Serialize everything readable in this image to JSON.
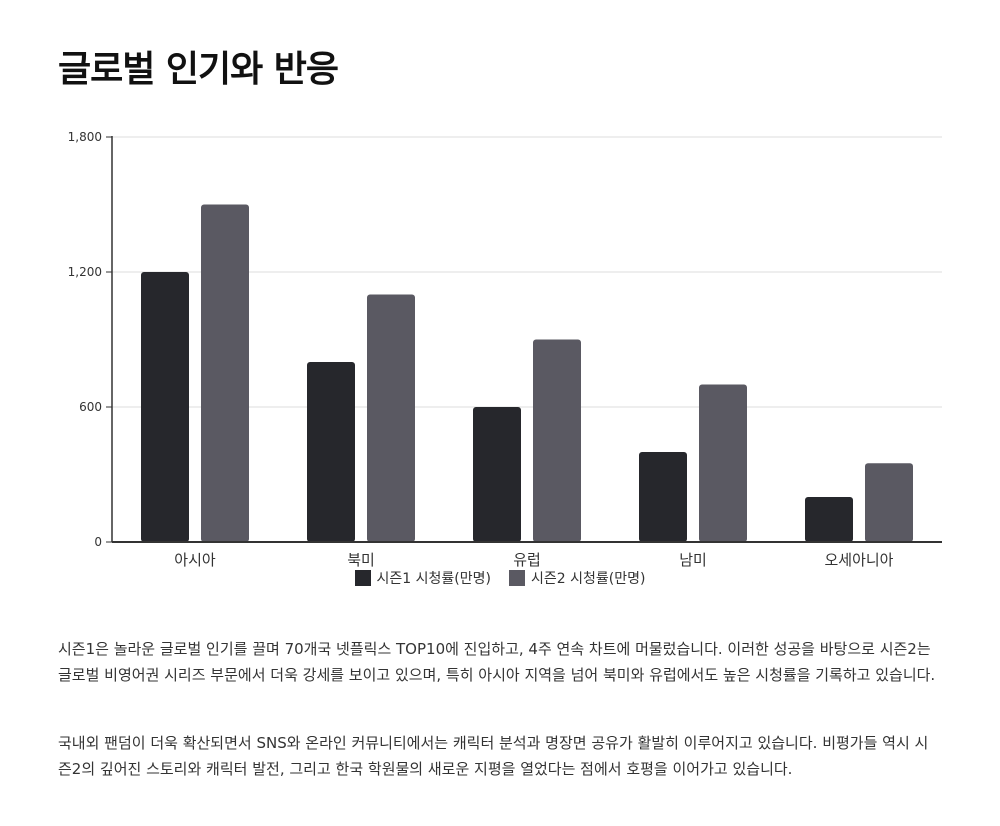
{
  "page": {
    "title": "글로벌 인기와 반응",
    "paragraphs": [
      "시즌1은 놀라운 글로벌 인기를 끌며 70개국 넷플릭스 TOP10에 진입하고, 4주 연속 차트에 머물렀습니다. 이러한 성공을 바탕으로 시즌2는 글로벌 비영어권 시리즈 부문에서 더욱 강세를 보이고 있으며, 특히 아시아 지역을 넘어 북미와 유럽에서도 높은 시청률을 기록하고 있습니다.",
      "국내외 팬덤이 더욱 확산되면서 SNS와 온라인 커뮤니티에서는 캐릭터 분석과 명장면 공유가 활발히 이루어지고 있습니다. 비평가들 역시 시즌2의 깊어진 스토리와 캐릭터 발전, 그리고 한국 학원물의 새로운 지평을 열었다는 점에서 호평을 이어가고 있습니다."
    ]
  },
  "chart_data": {
    "type": "bar",
    "title": "",
    "xlabel": "",
    "ylabel": "",
    "categories": [
      "아시아",
      "북미",
      "유럽",
      "남미",
      "오세아니아"
    ],
    "series": [
      {
        "name": "시즌1 시청률(만명)",
        "values": [
          1200,
          800,
          600,
          400,
          200
        ],
        "color": "#26272c"
      },
      {
        "name": "시즌2 시청률(만명)",
        "values": [
          1500,
          1100,
          900,
          700,
          350
        ],
        "color": "#5a5962"
      }
    ],
    "ylim": [
      0,
      1800
    ],
    "yticks": [
      0,
      600,
      1200,
      1800
    ],
    "ytick_labels": [
      "0",
      "600",
      "1,200",
      "1,800"
    ],
    "grid": true,
    "legend_position": "bottom"
  }
}
